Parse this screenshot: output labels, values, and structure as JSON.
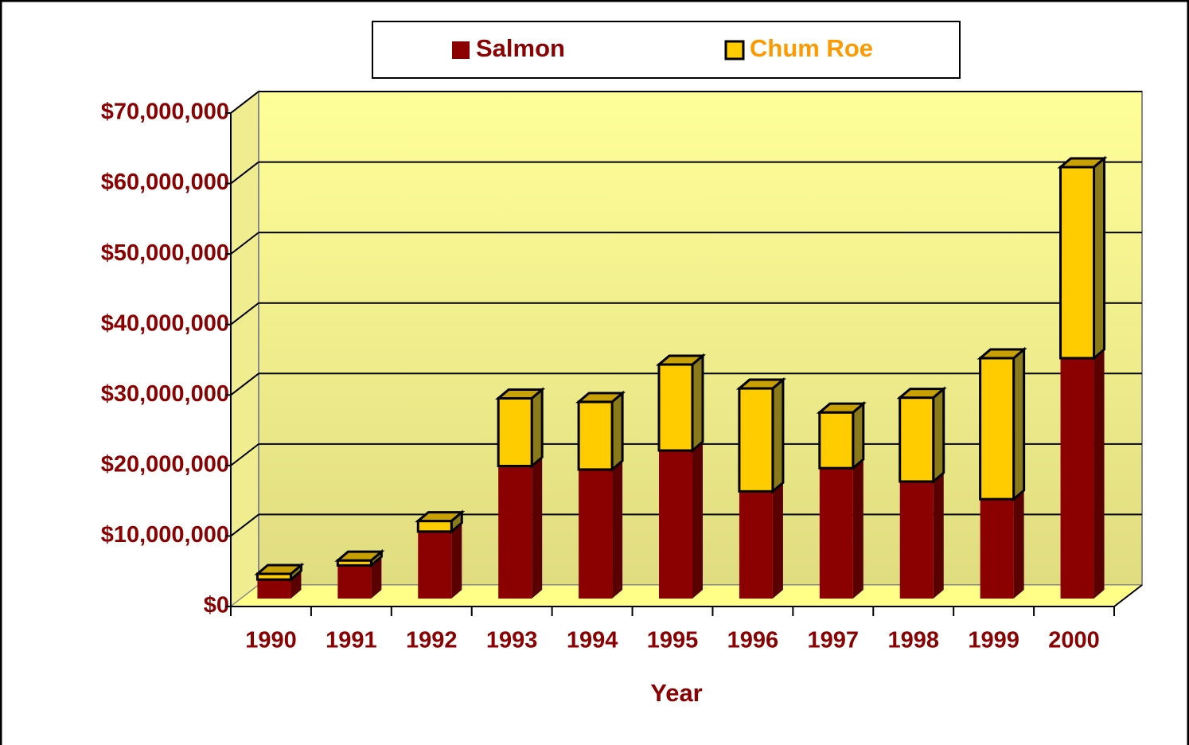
{
  "chart_data": {
    "type": "bar",
    "stacked": true,
    "x_label": "Year",
    "categories": [
      "1990",
      "1991",
      "1992",
      "1993",
      "1994",
      "1995",
      "1996",
      "1997",
      "1998",
      "1999",
      "2000"
    ],
    "series": [
      {
        "name": "Salmon",
        "color": "#8b0000",
        "side_color": "#5a0000",
        "legend_text_color": "#8b0000",
        "values": [
          2700000,
          4700000,
          9500000,
          18800000,
          18300000,
          21000000,
          15200000,
          18500000,
          16600000,
          14100000,
          34100000
        ]
      },
      {
        "name": "Chum Roe",
        "color": "#ffcc00",
        "side_color": "#8b7a1a",
        "legend_text_color": "#ff9900",
        "values": [
          800000,
          700000,
          1500000,
          9600000,
          9600000,
          12200000,
          14600000,
          7900000,
          11900000,
          20000000,
          27100000
        ]
      }
    ],
    "ylim": [
      0,
      70000000
    ],
    "yticks": [
      {
        "value": 0,
        "label": "$0"
      },
      {
        "value": 10000000,
        "label": "$10,000,000"
      },
      {
        "value": 20000000,
        "label": "$20,000,000"
      },
      {
        "value": 30000000,
        "label": "$30,000,000"
      },
      {
        "value": 40000000,
        "label": "$40,000,000"
      },
      {
        "value": 50000000,
        "label": "$50,000,000"
      },
      {
        "value": 60000000,
        "label": "$60,000,000"
      },
      {
        "value": 70000000,
        "label": "$70,000,000"
      }
    ],
    "grid": true,
    "legend": "top"
  }
}
